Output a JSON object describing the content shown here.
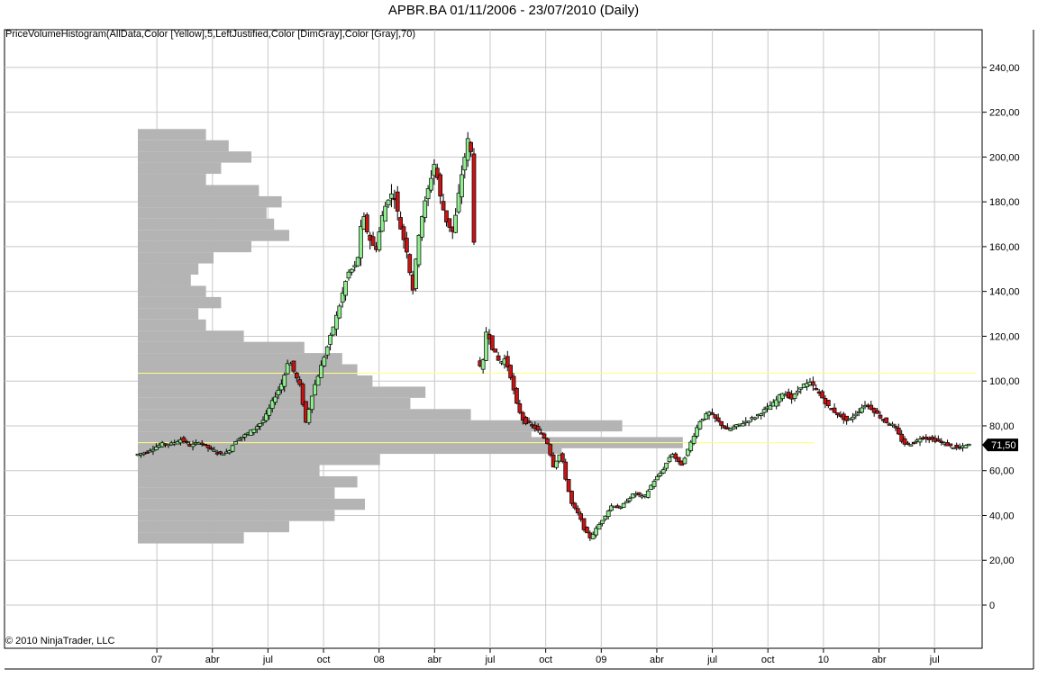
{
  "title": "APBR.BA  01/11/2006 - 23/07/2010 (Daily)",
  "indicator_label": "PriceVolumeHistogram(AllData,Color [Yellow],5,LeftJustified,Color [DimGray],Color [Gray],70)",
  "copyright": "© 2010 NinjaTrader, LLC",
  "colors": {
    "background": "#ffffff",
    "grid": "#c8c8c8",
    "histogram": "#b4b4b4",
    "up_candle": "#90ee90",
    "down_candle": "#c81414",
    "outline": "#000000",
    "yellow_line": "#ffff7a"
  },
  "chart_data": {
    "type": "candlestick",
    "title": "APBR.BA  01/11/2006 - 23/07/2010 (Daily)",
    "y_axis": {
      "min": -20,
      "max": 250,
      "ticks": [
        0,
        20,
        40,
        60,
        80,
        100,
        120,
        140,
        160,
        180,
        200,
        220,
        240
      ],
      "tick_labels": [
        "0",
        "20,00",
        "40,00",
        "60,00",
        "80,00",
        "100,00",
        "120,00",
        "140,00",
        "160,00",
        "180,00",
        "200,00",
        "220,00",
        "240,00"
      ],
      "position": "right"
    },
    "x_axis": {
      "tick_labels": [
        "07",
        "abr",
        "jul",
        "oct",
        "08",
        "abr",
        "jul",
        "oct",
        "09",
        "abr",
        "jul",
        "oct",
        "10",
        "abr",
        "jul"
      ],
      "tick_months": [
        2,
        5,
        8,
        11,
        14,
        17,
        20,
        23,
        26,
        29,
        32,
        35,
        38,
        41,
        44
      ]
    },
    "last_price_label": "71,50",
    "last_price": 71.5,
    "yellow_lines": [
      {
        "value": 103.5,
        "x_from_month": 0,
        "x_to_month": 45.3
      },
      {
        "value": 72.5,
        "x_from_month": 0,
        "x_to_month": 36.5
      }
    ],
    "price_path": [
      [
        0,
        67
      ],
      [
        0.5,
        68
      ],
      [
        1,
        70
      ],
      [
        1.5,
        72
      ],
      [
        2,
        72
      ],
      [
        2.5,
        74
      ],
      [
        3,
        71
      ],
      [
        3.5,
        73
      ],
      [
        4,
        70
      ],
      [
        4.5,
        68
      ],
      [
        5,
        68
      ],
      [
        5.5,
        74
      ],
      [
        6,
        76
      ],
      [
        6.5,
        79
      ],
      [
        7,
        83
      ],
      [
        7.5,
        92
      ],
      [
        8,
        100
      ],
      [
        8.3,
        110
      ],
      [
        8.6,
        104
      ],
      [
        9,
        96
      ],
      [
        9.2,
        80
      ],
      [
        9.6,
        95
      ],
      [
        10,
        105
      ],
      [
        10.5,
        118
      ],
      [
        11,
        132
      ],
      [
        11.5,
        148
      ],
      [
        12,
        152
      ],
      [
        12.3,
        175
      ],
      [
        12.6,
        165
      ],
      [
        13,
        158
      ],
      [
        13.4,
        175
      ],
      [
        13.7,
        182
      ],
      [
        14,
        184
      ],
      [
        14.3,
        170
      ],
      [
        14.7,
        158
      ],
      [
        15,
        140
      ],
      [
        15.4,
        170
      ],
      [
        15.8,
        184
      ],
      [
        16.2,
        198
      ],
      [
        16.5,
        182
      ],
      [
        16.8,
        172
      ],
      [
        17.2,
        166
      ],
      [
        17.4,
        178
      ],
      [
        17.7,
        195
      ],
      [
        18,
        208
      ],
      [
        18.2,
        200
      ],
      [
        18.5,
        104
      ],
      [
        18.8,
        108
      ],
      [
        19,
        124
      ],
      [
        19.3,
        115
      ],
      [
        19.7,
        108
      ],
      [
        20,
        110
      ],
      [
        20.3,
        102
      ],
      [
        20.6,
        90
      ],
      [
        21,
        82
      ],
      [
        21.5,
        80
      ],
      [
        22,
        76
      ],
      [
        22.3,
        72
      ],
      [
        22.6,
        62
      ],
      [
        23,
        68
      ],
      [
        23.3,
        55
      ],
      [
        23.6,
        45
      ],
      [
        24,
        40
      ],
      [
        24.3,
        33
      ],
      [
        24.6,
        30
      ],
      [
        25,
        35
      ],
      [
        25.4,
        40
      ],
      [
        25.8,
        45
      ],
      [
        26.2,
        43
      ],
      [
        26.6,
        47
      ],
      [
        27,
        50
      ],
      [
        27.5,
        48
      ],
      [
        28,
        55
      ],
      [
        28.5,
        60
      ],
      [
        29,
        68
      ],
      [
        29.5,
        62
      ],
      [
        30,
        72
      ],
      [
        30.5,
        82
      ],
      [
        31,
        86
      ],
      [
        31.5,
        82
      ],
      [
        32,
        78
      ],
      [
        32.5,
        80
      ],
      [
        33,
        82
      ],
      [
        33.5,
        84
      ],
      [
        34,
        87
      ],
      [
        34.5,
        90
      ],
      [
        35,
        95
      ],
      [
        35.5,
        92
      ],
      [
        36,
        98
      ],
      [
        36.5,
        99
      ],
      [
        37,
        94
      ],
      [
        37.5,
        88
      ],
      [
        38,
        85
      ],
      [
        38.5,
        82
      ],
      [
        39,
        86
      ],
      [
        39.5,
        90
      ],
      [
        40,
        86
      ],
      [
        40.5,
        82
      ],
      [
        41,
        80
      ],
      [
        41.5,
        72
      ],
      [
        42,
        72
      ],
      [
        42.5,
        75
      ],
      [
        43,
        74
      ],
      [
        43.5,
        73
      ],
      [
        44,
        71
      ],
      [
        44.5,
        70
      ],
      [
        45,
        71.5
      ]
    ],
    "volume_profile_levels": [
      {
        "price": 210,
        "relative_volume": 0.45
      },
      {
        "price": 205,
        "relative_volume": 0.6
      },
      {
        "price": 200,
        "relative_volume": 0.75
      },
      {
        "price": 195,
        "relative_volume": 0.55
      },
      {
        "price": 190,
        "relative_volume": 0.45
      },
      {
        "price": 185,
        "relative_volume": 0.8
      },
      {
        "price": 180,
        "relative_volume": 0.95
      },
      {
        "price": 175,
        "relative_volume": 0.85
      },
      {
        "price": 170,
        "relative_volume": 0.9
      },
      {
        "price": 165,
        "relative_volume": 1.0
      },
      {
        "price": 160,
        "relative_volume": 0.75
      },
      {
        "price": 155,
        "relative_volume": 0.5
      },
      {
        "price": 150,
        "relative_volume": 0.4
      },
      {
        "price": 145,
        "relative_volume": 0.35
      },
      {
        "price": 140,
        "relative_volume": 0.45
      },
      {
        "price": 135,
        "relative_volume": 0.55
      },
      {
        "price": 130,
        "relative_volume": 0.4
      },
      {
        "price": 125,
        "relative_volume": 0.45
      },
      {
        "price": 120,
        "relative_volume": 0.7
      },
      {
        "price": 115,
        "relative_volume": 1.1
      },
      {
        "price": 110,
        "relative_volume": 1.35
      },
      {
        "price": 105,
        "relative_volume": 1.45
      },
      {
        "price": 100,
        "relative_volume": 1.55
      },
      {
        "price": 95,
        "relative_volume": 1.9
      },
      {
        "price": 90,
        "relative_volume": 1.8
      },
      {
        "price": 85,
        "relative_volume": 2.2
      },
      {
        "price": 80,
        "relative_volume": 3.2
      },
      {
        "price": 75,
        "relative_volume": 2.6
      },
      {
        "price": 72.5,
        "relative_volume": 3.6
      },
      {
        "price": 70,
        "relative_volume": 2.8
      },
      {
        "price": 65,
        "relative_volume": 1.6
      },
      {
        "price": 60,
        "relative_volume": 1.2
      },
      {
        "price": 55,
        "relative_volume": 1.45
      },
      {
        "price": 50,
        "relative_volume": 1.3
      },
      {
        "price": 45,
        "relative_volume": 1.5
      },
      {
        "price": 40,
        "relative_volume": 1.3
      },
      {
        "price": 35,
        "relative_volume": 1.0
      },
      {
        "price": 30,
        "relative_volume": 0.7
      }
    ]
  }
}
